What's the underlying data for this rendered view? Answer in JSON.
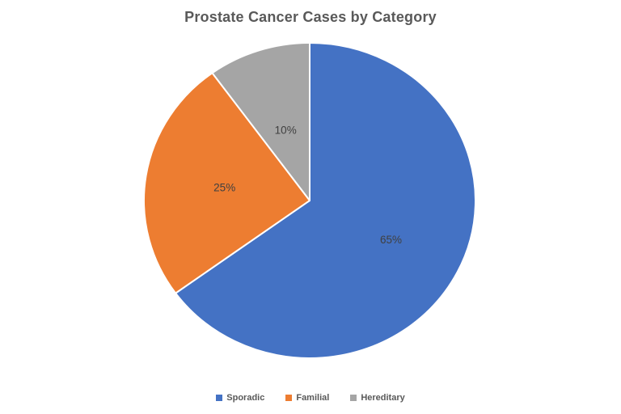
{
  "chart_data": {
    "type": "pie",
    "title": "Prostate Cancer Cases by Category",
    "categories": [
      "Sporadic",
      "Familial",
      "Hereditary"
    ],
    "values": [
      65,
      25,
      10
    ],
    "slice_labels": [
      "65%",
      "25%",
      "10%"
    ],
    "colors": [
      "#4472C4",
      "#ED7D31",
      "#A5A5A5"
    ],
    "start_angle_deg": 0,
    "direction": "clockwise",
    "legend_position": "bottom",
    "title_color": "#595959",
    "slice_label_color": "#404040",
    "separator_color": "#FFFFFF"
  }
}
